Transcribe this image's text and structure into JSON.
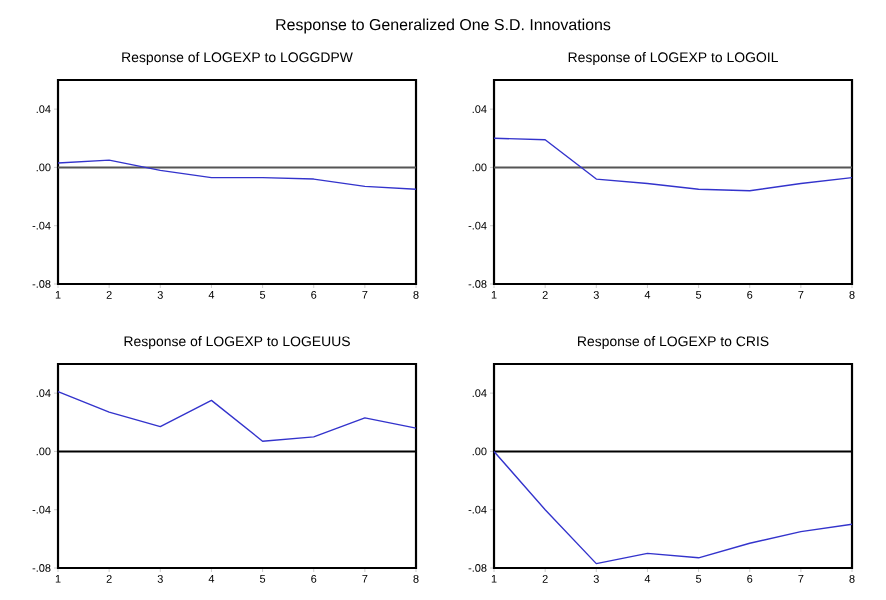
{
  "chart_data": [
    {
      "type": "line",
      "title": "Response of LOGEXP to LOGGDPW",
      "annotations": [
        "Response to Generalized One S.D. Innovations"
      ],
      "x": [
        1,
        2,
        3,
        4,
        5,
        6,
        7,
        8
      ],
      "xlim": [
        1,
        8
      ],
      "xticks": [
        1,
        2,
        3,
        4,
        5,
        6,
        7,
        8
      ],
      "ylim": [
        -0.08,
        0.06
      ],
      "yticks": [
        {
          "value": -0.08,
          "label": "-.08"
        },
        {
          "value": -0.04,
          "label": "-.04"
        },
        {
          "value": 0,
          "label": ".00"
        },
        {
          "value": 0.04,
          "label": ".04"
        }
      ],
      "ref_lines": [
        {
          "axis": "y",
          "value": 0,
          "color": "#555555"
        }
      ],
      "series": [
        {
          "color": "#3333cc",
          "values": [
            0.003,
            0.005,
            -0.002,
            -0.007,
            -0.007,
            -0.008,
            -0.013,
            -0.015
          ]
        }
      ]
    },
    {
      "type": "line",
      "title": "Response of LOGEXP to LOGOIL",
      "x": [
        1,
        2,
        3,
        4,
        5,
        6,
        7,
        8
      ],
      "xlim": [
        1,
        8
      ],
      "xticks": [
        1,
        2,
        3,
        4,
        5,
        6,
        7,
        8
      ],
      "ylim": [
        -0.08,
        0.06
      ],
      "yticks": [
        {
          "value": -0.08,
          "label": "-.08"
        },
        {
          "value": -0.04,
          "label": "-.04"
        },
        {
          "value": 0,
          "label": ".00"
        },
        {
          "value": 0.04,
          "label": ".04"
        }
      ],
      "ref_lines": [
        {
          "axis": "y",
          "value": 0,
          "color": "#555555"
        }
      ],
      "series": [
        {
          "color": "#3333cc",
          "values": [
            0.02,
            0.019,
            -0.008,
            -0.011,
            -0.015,
            -0.016,
            -0.011,
            -0.007
          ]
        }
      ]
    },
    {
      "type": "line",
      "title": "Response of LOGEXP to LOGEUUS",
      "x": [
        1,
        2,
        3,
        4,
        5,
        6,
        7,
        8
      ],
      "xlim": [
        1,
        8
      ],
      "xticks": [
        1,
        2,
        3,
        4,
        5,
        6,
        7,
        8
      ],
      "ylim": [
        -0.08,
        0.06
      ],
      "yticks": [
        {
          "value": -0.08,
          "label": "-.08"
        },
        {
          "value": -0.04,
          "label": "-.04"
        },
        {
          "value": 0,
          "label": ".00"
        },
        {
          "value": 0.04,
          "label": ".04"
        }
      ],
      "ref_lines": [
        {
          "axis": "y",
          "value": 0,
          "color": "#000000"
        }
      ],
      "series": [
        {
          "color": "#3333cc",
          "values": [
            0.041,
            0.027,
            0.017,
            0.035,
            0.007,
            0.01,
            0.023,
            0.016
          ]
        }
      ]
    },
    {
      "type": "line",
      "title": "Response of LOGEXP to CRIS",
      "x": [
        1,
        2,
        3,
        4,
        5,
        6,
        7,
        8
      ],
      "xlim": [
        1,
        8
      ],
      "xticks": [
        1,
        2,
        3,
        4,
        5,
        6,
        7,
        8
      ],
      "ylim": [
        -0.08,
        0.06
      ],
      "yticks": [
        {
          "value": -0.08,
          "label": "-.08"
        },
        {
          "value": -0.04,
          "label": "-.04"
        },
        {
          "value": 0,
          "label": ".00"
        },
        {
          "value": 0.04,
          "label": ".04"
        }
      ],
      "ref_lines": [
        {
          "axis": "y",
          "value": 0,
          "color": "#000000"
        }
      ],
      "series": [
        {
          "color": "#3333cc",
          "values": [
            0.0,
            -0.04,
            -0.077,
            -0.07,
            -0.073,
            -0.063,
            -0.055,
            -0.05
          ]
        }
      ]
    }
  ]
}
